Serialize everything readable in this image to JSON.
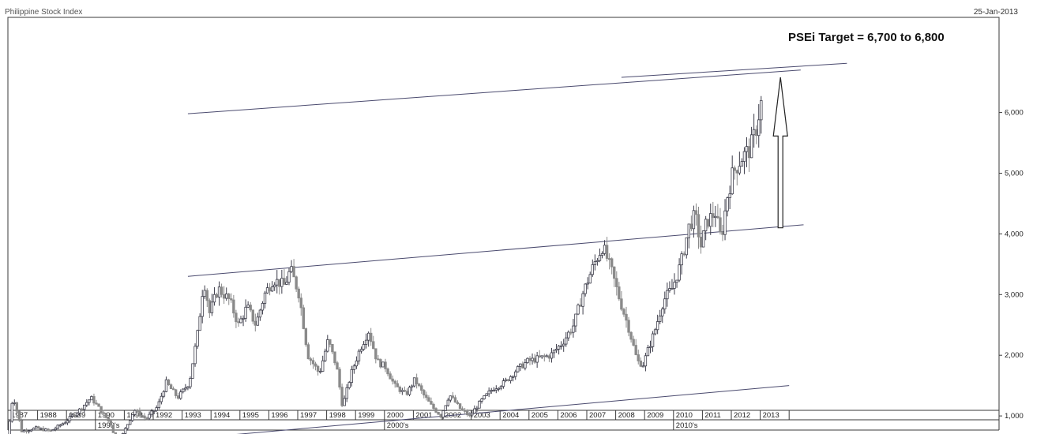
{
  "header": {
    "title": "Philippine Stock Index",
    "date": "25-Jan-2013"
  },
  "colors": {
    "background": "#ffffff",
    "frame": "#3a3a3a",
    "candle": "#3d3d4a",
    "candle_light": "#8a8a8a",
    "channel": "#4a4a6e",
    "arrow": "#222222"
  },
  "chart_data": {
    "type": "candlestick",
    "title": "Philippine Stock Index",
    "y_axis_side": "right",
    "ylim": [
      0,
      6900
    ],
    "y_ticks": [
      1000,
      2000,
      3000,
      4000,
      5000,
      6000
    ],
    "y_tick_labels": [
      "1,000",
      "2,000",
      "3,000",
      "4,000",
      "5,000",
      "6,000"
    ],
    "x_range": [
      1987.0,
      2014.0
    ],
    "year_labels": [
      "1987",
      "1988",
      "1989",
      "1990",
      "1991",
      "1992",
      "1993",
      "1994",
      "1995",
      "1996",
      "1997",
      "1998",
      "1999",
      "2000",
      "2001",
      "2002",
      "2003",
      "2004",
      "2005",
      "2006",
      "2007",
      "2008",
      "2009",
      "2010",
      "2011",
      "2012",
      "2013"
    ],
    "decade_labels": [
      {
        "x": 1990,
        "label": "1990's"
      },
      {
        "x": 2000,
        "label": "2000's"
      },
      {
        "x": 2010,
        "label": "2010's"
      }
    ],
    "price_path": [
      [
        1987.0,
        600
      ],
      [
        1987.2,
        1350
      ],
      [
        1987.5,
        750
      ],
      [
        1988.0,
        800
      ],
      [
        1988.5,
        750
      ],
      [
        1989.0,
        900
      ],
      [
        1989.5,
        1100
      ],
      [
        1989.9,
        1300
      ],
      [
        1990.3,
        1050
      ],
      [
        1990.6,
        850
      ],
      [
        1990.8,
        520
      ],
      [
        1991.0,
        700
      ],
      [
        1991.4,
        1100
      ],
      [
        1991.8,
        950
      ],
      [
        1992.2,
        1150
      ],
      [
        1992.5,
        1550
      ],
      [
        1992.9,
        1300
      ],
      [
        1993.3,
        1550
      ],
      [
        1993.6,
        2400
      ],
      [
        1993.8,
        3250
      ],
      [
        1994.0,
        2700
      ],
      [
        1994.3,
        3100
      ],
      [
        1994.7,
        2900
      ],
      [
        1995.0,
        2500
      ],
      [
        1995.3,
        2800
      ],
      [
        1995.6,
        2500
      ],
      [
        1995.9,
        3000
      ],
      [
        1996.2,
        3250
      ],
      [
        1996.6,
        3150
      ],
      [
        1996.8,
        3420
      ],
      [
        1997.1,
        3000
      ],
      [
        1997.4,
        2000
      ],
      [
        1997.8,
        1700
      ],
      [
        1998.1,
        2250
      ],
      [
        1998.4,
        1800
      ],
      [
        1998.6,
        1150
      ],
      [
        1998.9,
        1700
      ],
      [
        1999.2,
        2100
      ],
      [
        1999.5,
        2400
      ],
      [
        1999.8,
        1900
      ],
      [
        2000.1,
        1800
      ],
      [
        2000.4,
        1500
      ],
      [
        2000.8,
        1350
      ],
      [
        2001.1,
        1600
      ],
      [
        2001.4,
        1350
      ],
      [
        2001.7,
        1150
      ],
      [
        2002.0,
        1000
      ],
      [
        2002.3,
        1350
      ],
      [
        2002.7,
        1100
      ],
      [
        2003.0,
        1000
      ],
      [
        2003.4,
        1250
      ],
      [
        2003.8,
        1450
      ],
      [
        2004.2,
        1550
      ],
      [
        2004.6,
        1750
      ],
      [
        2005.0,
        1900
      ],
      [
        2005.4,
        1950
      ],
      [
        2005.8,
        2000
      ],
      [
        2006.2,
        2200
      ],
      [
        2006.6,
        2500
      ],
      [
        2006.9,
        3000
      ],
      [
        2007.3,
        3500
      ],
      [
        2007.6,
        3800
      ],
      [
        2007.9,
        3400
      ],
      [
        2008.2,
        2900
      ],
      [
        2008.5,
        2450
      ],
      [
        2008.8,
        1900
      ],
      [
        2009.0,
        1850
      ],
      [
        2009.4,
        2400
      ],
      [
        2009.7,
        2900
      ],
      [
        2010.0,
        3100
      ],
      [
        2010.3,
        3500
      ],
      [
        2010.6,
        4150
      ],
      [
        2010.8,
        4300
      ],
      [
        2011.0,
        3800
      ],
      [
        2011.2,
        4200
      ],
      [
        2011.5,
        4350
      ],
      [
        2011.7,
        3900
      ],
      [
        2011.9,
        4600
      ],
      [
        2012.1,
        5000
      ],
      [
        2012.4,
        5250
      ],
      [
        2012.7,
        5400
      ],
      [
        2012.9,
        5700
      ],
      [
        2013.07,
        6150
      ]
    ],
    "channel_lines": [
      {
        "from": [
          1990.7,
          520
        ],
        "to": [
          2014.0,
          1500
        ]
      },
      {
        "from": [
          1993.2,
          3300
        ],
        "to": [
          2014.5,
          4150
        ]
      },
      {
        "from": [
          1993.2,
          5980
        ],
        "to": [
          2014.4,
          6700
        ]
      },
      {
        "from": [
          2008.2,
          6580
        ],
        "to": [
          2016.0,
          6810
        ]
      }
    ],
    "annotation": {
      "text": "PSEi Target = 6,700 to 6,800",
      "arrow_x": 2013.7,
      "arrow_from": 4100,
      "arrow_to": 6580
    }
  }
}
